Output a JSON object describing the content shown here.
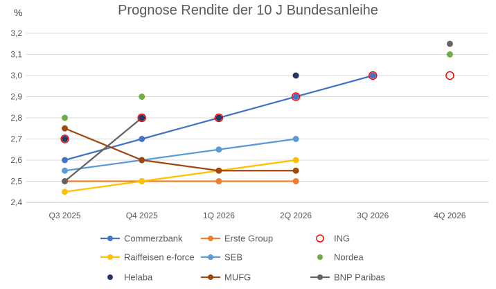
{
  "chart_data": {
    "type": "line",
    "title": "Prognose Rendite der 10 J Bundesanleihe",
    "unit_label": "%",
    "categories": [
      "Q3 2025",
      "Q4 2025",
      "1Q 2026",
      "2Q 2026",
      "3Q 2026",
      "4Q 2026"
    ],
    "ylim": [
      2.4,
      3.2
    ],
    "yticks": [
      "2,4",
      "2,5",
      "2,6",
      "2,7",
      "2,8",
      "2,9",
      "3,0",
      "3,1",
      "3,2"
    ],
    "grid": true,
    "legend_position": "bottom",
    "series": [
      {
        "name": "Commerzbank",
        "style": "line",
        "color": "#4472C4",
        "values": [
          2.6,
          2.7,
          2.8,
          2.9,
          3.0,
          null
        ]
      },
      {
        "name": "Erste Group",
        "style": "line",
        "color": "#ED7D31",
        "values": [
          2.5,
          2.5,
          2.5,
          2.5,
          null,
          null
        ]
      },
      {
        "name": "ING",
        "style": "ring",
        "color": "#FF0000",
        "values": [
          2.7,
          2.8,
          2.8,
          2.9,
          3.0,
          3.0
        ]
      },
      {
        "name": "Raiffeisen e-force",
        "style": "line",
        "color": "#FFC000",
        "values": [
          2.45,
          2.5,
          2.55,
          2.6,
          null,
          null
        ]
      },
      {
        "name": "SEB",
        "style": "line",
        "color": "#5B9BD5",
        "values": [
          2.55,
          2.6,
          2.65,
          2.7,
          null,
          null
        ]
      },
      {
        "name": "Nordea",
        "style": "dot",
        "color": "#70AD47",
        "values": [
          2.8,
          2.9,
          null,
          null,
          null,
          3.1
        ]
      },
      {
        "name": "Helaba",
        "style": "dot",
        "color": "#1F3864",
        "values": [
          2.7,
          2.8,
          2.8,
          3.0,
          null,
          null
        ]
      },
      {
        "name": "MUFG",
        "style": "line",
        "color": "#9E480E",
        "values": [
          2.75,
          2.6,
          2.55,
          2.55,
          null,
          null
        ]
      },
      {
        "name": "BNP Paribas",
        "style": "line",
        "color": "#636363",
        "values": [
          2.5,
          2.8,
          null,
          null,
          null,
          3.15
        ]
      }
    ]
  }
}
